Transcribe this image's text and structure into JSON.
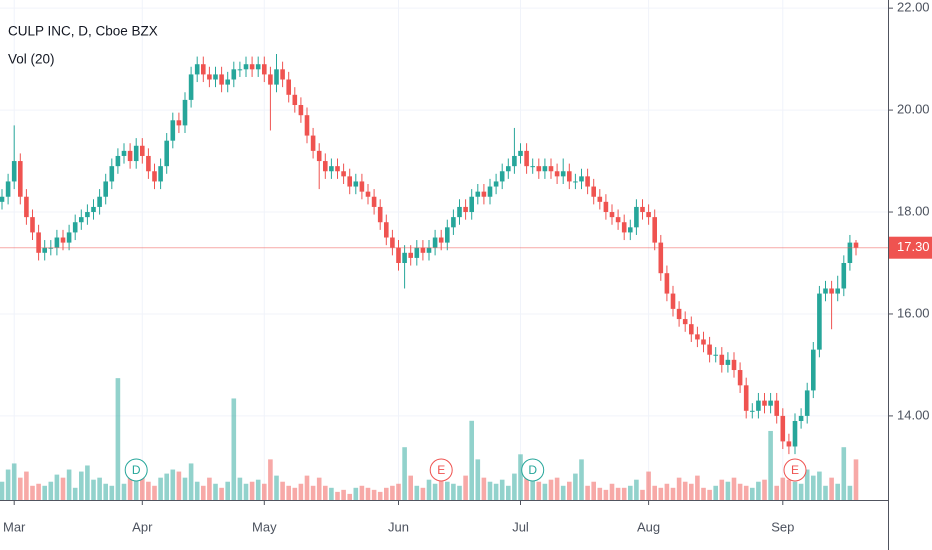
{
  "chart_data": {
    "type": "candlestick",
    "title": "CULP INC, D, Cboe BZX",
    "volume_label": "Vol (20)",
    "up_color": "#26a69a",
    "down_color": "#ef5350",
    "grid": true,
    "categories": [
      null,
      null,
      "Mar",
      null,
      null,
      null,
      null,
      null,
      null,
      null,
      null,
      null,
      null,
      null,
      null,
      null,
      null,
      null,
      null,
      null,
      null,
      null,
      null,
      "Apr",
      null,
      null,
      null,
      null,
      null,
      null,
      null,
      null,
      null,
      null,
      null,
      null,
      null,
      null,
      null,
      null,
      null,
      null,
      null,
      "May",
      null,
      null,
      null,
      null,
      null,
      null,
      null,
      null,
      null,
      null,
      null,
      null,
      null,
      null,
      null,
      null,
      null,
      null,
      null,
      null,
      null,
      "Jun",
      null,
      null,
      null,
      null,
      null,
      null,
      null,
      null,
      null,
      null,
      null,
      null,
      null,
      null,
      null,
      null,
      null,
      null,
      null,
      "Jul",
      null,
      null,
      null,
      null,
      null,
      null,
      null,
      null,
      null,
      null,
      null,
      null,
      null,
      null,
      null,
      null,
      null,
      null,
      null,
      null,
      "Aug",
      null,
      null,
      null,
      null,
      null,
      null,
      null,
      null,
      null,
      null,
      null,
      null,
      null,
      null,
      null,
      null,
      null,
      null,
      null,
      null,
      null,
      "Sep",
      null,
      null,
      null,
      null,
      null,
      null,
      null,
      null,
      null,
      null,
      null,
      null
    ],
    "open": [
      18.2,
      18.3,
      18.6,
      19.0,
      18.3,
      17.9,
      17.6,
      17.2,
      17.3,
      17.3,
      17.5,
      17.4,
      17.6,
      17.8,
      17.9,
      18.0,
      18.1,
      18.3,
      18.6,
      18.9,
      19.1,
      19.2,
      19.0,
      19.3,
      19.1,
      18.8,
      18.6,
      18.9,
      19.4,
      19.8,
      19.7,
      20.2,
      20.7,
      20.9,
      20.7,
      20.6,
      20.7,
      20.5,
      20.6,
      20.8,
      20.8,
      20.9,
      20.8,
      20.9,
      20.7,
      20.5,
      20.8,
      20.6,
      20.3,
      20.1,
      19.9,
      19.5,
      19.2,
      19.0,
      18.8,
      18.9,
      18.8,
      18.7,
      18.5,
      18.6,
      18.4,
      18.3,
      18.1,
      17.8,
      17.5,
      17.3,
      17.0,
      17.2,
      17.1,
      17.3,
      17.2,
      17.3,
      17.5,
      17.4,
      17.7,
      17.9,
      18.1,
      18.0,
      18.3,
      18.4,
      18.3,
      18.5,
      18.6,
      18.8,
      18.9,
      19.1,
      19.2,
      18.9,
      18.9,
      18.8,
      18.9,
      18.8,
      18.7,
      18.8,
      18.6,
      18.6,
      18.7,
      18.5,
      18.3,
      18.2,
      18.0,
      17.9,
      17.8,
      17.6,
      17.7,
      18.1,
      18.0,
      17.9,
      17.4,
      16.8,
      16.4,
      16.1,
      15.9,
      15.8,
      15.6,
      15.5,
      15.4,
      15.2,
      15.2,
      15.0,
      15.1,
      14.9,
      14.6,
      14.1,
      14.1,
      14.3,
      14.2,
      14.3,
      14.0,
      13.5,
      13.4,
      13.9,
      14.0,
      14.5,
      15.3,
      16.4,
      16.5,
      16.4,
      16.5,
      17.0,
      17.4
    ],
    "high": [
      18.45,
      18.75,
      19.7,
      19.15,
      18.45,
      18.05,
      17.75,
      17.45,
      17.45,
      17.65,
      17.65,
      17.75,
      17.95,
      18.05,
      18.15,
      18.25,
      18.45,
      18.75,
      19.05,
      19.25,
      19.35,
      19.35,
      19.45,
      19.45,
      19.25,
      18.95,
      19.05,
      19.55,
      19.95,
      19.95,
      20.35,
      20.85,
      21.05,
      21.05,
      20.85,
      20.85,
      20.85,
      20.75,
      20.95,
      20.95,
      21.05,
      21.05,
      21.05,
      21.05,
      20.85,
      21.1,
      20.95,
      20.75,
      20.45,
      20.25,
      20.05,
      19.65,
      19.35,
      19.15,
      19.05,
      19.05,
      18.95,
      18.85,
      18.75,
      18.75,
      18.55,
      18.45,
      18.25,
      17.95,
      17.65,
      17.45,
      17.35,
      17.35,
      17.45,
      17.45,
      17.45,
      17.65,
      17.65,
      17.85,
      18.05,
      18.25,
      18.25,
      18.45,
      18.55,
      18.55,
      18.65,
      18.75,
      18.95,
      19.05,
      19.65,
      19.35,
      19.35,
      19.05,
      19.05,
      19.05,
      19.05,
      18.95,
      19.05,
      18.95,
      18.75,
      18.85,
      18.85,
      18.65,
      18.45,
      18.35,
      18.15,
      18.05,
      17.95,
      17.85,
      18.25,
      18.25,
      18.15,
      18.05,
      17.55,
      16.95,
      16.55,
      16.25,
      16.05,
      15.95,
      15.75,
      15.65,
      15.55,
      15.35,
      15.35,
      15.25,
      15.25,
      15.05,
      14.75,
      14.25,
      14.45,
      14.45,
      14.45,
      14.45,
      14.15,
      13.65,
      14.05,
      14.15,
      14.65,
      15.45,
      16.55,
      16.65,
      16.65,
      16.75,
      17.15,
      17.55,
      17.45
    ],
    "low": [
      18.05,
      18.15,
      18.45,
      18.15,
      17.75,
      17.45,
      17.05,
      17.05,
      17.15,
      17.15,
      17.25,
      17.25,
      17.45,
      17.65,
      17.75,
      17.85,
      17.95,
      18.15,
      18.45,
      18.75,
      18.95,
      18.85,
      18.85,
      18.95,
      18.65,
      18.45,
      18.45,
      18.75,
      19.25,
      19.55,
      19.55,
      20.05,
      20.55,
      20.55,
      20.45,
      20.45,
      20.35,
      20.35,
      20.45,
      20.65,
      20.65,
      20.65,
      20.65,
      20.55,
      19.6,
      20.35,
      20.45,
      20.15,
      19.95,
      19.75,
      19.35,
      19.05,
      18.45,
      18.65,
      18.65,
      18.65,
      18.55,
      18.35,
      18.35,
      18.25,
      18.15,
      17.95,
      17.65,
      17.35,
      17.15,
      16.85,
      16.5,
      16.95,
      16.95,
      17.05,
      17.05,
      17.15,
      17.25,
      17.25,
      17.55,
      17.75,
      17.85,
      17.85,
      18.15,
      18.15,
      18.15,
      18.35,
      18.45,
      18.65,
      18.75,
      18.95,
      18.75,
      18.75,
      18.65,
      18.65,
      18.65,
      18.55,
      18.55,
      18.45,
      18.45,
      18.45,
      18.35,
      18.15,
      18.05,
      17.85,
      17.75,
      17.65,
      17.45,
      17.45,
      17.55,
      17.85,
      17.75,
      17.25,
      16.65,
      16.25,
      15.95,
      15.75,
      15.65,
      15.45,
      15.35,
      15.25,
      15.05,
      15.05,
      14.85,
      14.85,
      14.75,
      14.45,
      13.95,
      13.95,
      13.95,
      14.05,
      14.05,
      13.85,
      13.35,
      13.25,
      13.25,
      13.75,
      13.85,
      14.35,
      15.15,
      16.25,
      15.7,
      16.25,
      16.35,
      16.85,
      17.15
    ],
    "close": [
      18.3,
      18.6,
      19.0,
      18.3,
      17.9,
      17.6,
      17.2,
      17.3,
      17.3,
      17.5,
      17.4,
      17.6,
      17.8,
      17.9,
      18.0,
      18.1,
      18.3,
      18.6,
      18.9,
      19.1,
      19.2,
      19.0,
      19.3,
      19.1,
      18.8,
      18.6,
      18.9,
      19.4,
      19.8,
      19.7,
      20.2,
      20.7,
      20.9,
      20.7,
      20.6,
      20.7,
      20.5,
      20.6,
      20.8,
      20.8,
      20.9,
      20.8,
      20.9,
      20.7,
      20.5,
      20.8,
      20.6,
      20.3,
      20.1,
      19.9,
      19.5,
      19.2,
      19.0,
      18.8,
      18.9,
      18.8,
      18.7,
      18.5,
      18.6,
      18.4,
      18.3,
      18.1,
      17.8,
      17.5,
      17.3,
      17.0,
      17.2,
      17.1,
      17.3,
      17.2,
      17.3,
      17.5,
      17.4,
      17.7,
      17.9,
      18.1,
      18.0,
      18.3,
      18.4,
      18.3,
      18.5,
      18.6,
      18.8,
      18.9,
      19.1,
      19.2,
      18.9,
      18.9,
      18.8,
      18.9,
      18.8,
      18.7,
      18.8,
      18.6,
      18.6,
      18.7,
      18.5,
      18.3,
      18.2,
      18.0,
      17.9,
      17.8,
      17.6,
      17.7,
      18.1,
      18.0,
      17.9,
      17.4,
      16.8,
      16.4,
      16.1,
      15.9,
      15.8,
      15.6,
      15.5,
      15.4,
      15.2,
      15.2,
      15.0,
      15.1,
      14.9,
      14.6,
      14.1,
      14.1,
      14.3,
      14.2,
      14.3,
      14.0,
      13.5,
      13.4,
      13.9,
      14.0,
      14.5,
      15.3,
      16.4,
      16.5,
      16.4,
      16.5,
      17.0,
      17.4,
      17.3
    ],
    "volume": [
      18,
      30,
      36,
      22,
      28,
      14,
      16,
      14,
      18,
      25,
      22,
      30,
      12,
      28,
      34,
      20,
      22,
      16,
      14,
      120,
      16,
      24,
      20,
      26,
      18,
      14,
      22,
      26,
      30,
      28,
      22,
      36,
      18,
      14,
      22,
      16,
      12,
      18,
      100,
      22,
      16,
      18,
      20,
      16,
      40,
      24,
      18,
      14,
      12,
      16,
      24,
      14,
      22,
      14,
      12,
      8,
      10,
      6,
      12,
      14,
      12,
      10,
      8,
      12,
      14,
      16,
      52,
      24,
      14,
      12,
      20,
      16,
      34,
      18,
      16,
      14,
      24,
      78,
      40,
      22,
      18,
      16,
      20,
      14,
      26,
      45,
      28,
      20,
      18,
      16,
      20,
      22,
      14,
      18,
      26,
      40,
      14,
      18,
      12,
      10,
      16,
      12,
      12,
      14,
      20,
      10,
      28,
      14,
      12,
      16,
      12,
      22,
      18,
      16,
      24,
      12,
      10,
      14,
      20,
      18,
      22,
      16,
      14,
      12,
      18,
      20,
      68,
      14,
      22,
      20,
      18,
      16,
      30,
      24,
      28,
      14,
      22,
      16,
      52,
      14,
      40
    ],
    "volume_ylim": [
      0,
      130
    ],
    "ylim": [
      12.35,
      22.16
    ],
    "yticks": [
      {
        "value": 14,
        "label": "14.00"
      },
      {
        "value": 16,
        "label": "16.00"
      },
      {
        "value": 18,
        "label": "18.00"
      },
      {
        "value": 20,
        "label": "20.00"
      },
      {
        "value": 22,
        "label": "22.00"
      }
    ],
    "last_price": {
      "value": 17.3,
      "label": "17.30"
    },
    "events": [
      {
        "label": "D",
        "index": 22,
        "color": "#26a69a"
      },
      {
        "label": "E",
        "index": 72,
        "color": "#ef5350"
      },
      {
        "label": "D",
        "index": 87,
        "color": "#26a69a"
      },
      {
        "label": "E",
        "index": 130,
        "color": "#ef5350"
      }
    ]
  }
}
